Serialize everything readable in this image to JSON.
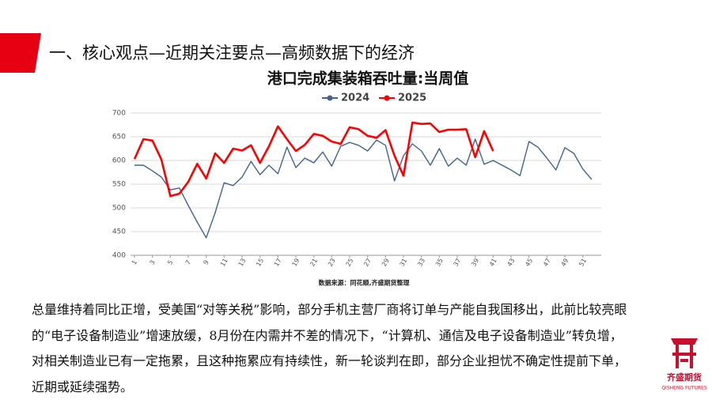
{
  "header": {
    "title": "一、核心观点—近期关注要点—高频数据下的经济"
  },
  "chart_data": {
    "type": "line",
    "title": "港口完成集装箱吞吐量:当周值",
    "source": "数据来源：同花顺,齐盛期货整理",
    "x": [
      1,
      2,
      3,
      4,
      5,
      6,
      7,
      8,
      9,
      10,
      11,
      12,
      13,
      14,
      15,
      16,
      17,
      18,
      19,
      20,
      21,
      22,
      23,
      24,
      25,
      26,
      27,
      28,
      29,
      30,
      31,
      32,
      33,
      34,
      35,
      36,
      37,
      38,
      39,
      40,
      41,
      42,
      43,
      44,
      45,
      46,
      47,
      48,
      49,
      50,
      51,
      52
    ],
    "xlim": [
      1,
      52
    ],
    "xticks": [
      1,
      3,
      5,
      7,
      9,
      11,
      13,
      15,
      17,
      19,
      21,
      23,
      25,
      27,
      29,
      31,
      33,
      35,
      37,
      39,
      41,
      43,
      45,
      47,
      49,
      51
    ],
    "ylim": [
      400,
      700
    ],
    "yticks": [
      400,
      450,
      500,
      550,
      600,
      650,
      700
    ],
    "grid": true,
    "legend": "top",
    "series": [
      {
        "name": "2024",
        "color": "#41638f",
        "values": [
          590,
          590,
          578,
          565,
          538,
          542,
          505,
          470,
          437,
          490,
          553,
          547,
          565,
          598,
          570,
          590,
          572,
          628,
          585,
          605,
          595,
          618,
          588,
          630,
          638,
          632,
          620,
          643,
          632,
          557,
          610,
          635,
          620,
          590,
          625,
          588,
          605,
          590,
          645,
          592,
          600,
          590,
          580,
          568,
          640,
          628,
          605,
          580,
          627,
          615,
          582,
          560
        ]
      },
      {
        "name": "2025",
        "color": "#ff0000",
        "values": [
          603,
          645,
          642,
          602,
          525,
          530,
          555,
          593,
          562,
          615,
          595,
          625,
          621,
          632,
          595,
          630,
          672,
          645,
          620,
          633,
          656,
          652,
          640,
          635,
          670,
          666,
          652,
          648,
          664,
          610,
          568,
          680,
          677,
          678,
          660,
          665,
          665,
          666,
          607,
          662,
          620,
          null,
          null,
          null,
          null,
          null,
          null,
          null,
          null,
          null,
          null,
          null
        ]
      }
    ]
  },
  "body": {
    "lines": [
      "总量维持着同比正增，受美国“对等关税”影响，部分手机主营厂商将订单与产能自我国移出，此前比较亮眼",
      "的“电子设备制造业”增速放缓，8月份在内需并不差的情况下，“计算机、通信及电子设备制造业”转负增，",
      "对相关制造业已有一定拖累，且这种拖累应有持续性，新一轮谈判在即，部分企业担忧不确定性提前下单，",
      "近期或延续强势。"
    ]
  },
  "logo": {
    "name": "齐盛期货",
    "name_en": "QISHENG FUTURES"
  }
}
